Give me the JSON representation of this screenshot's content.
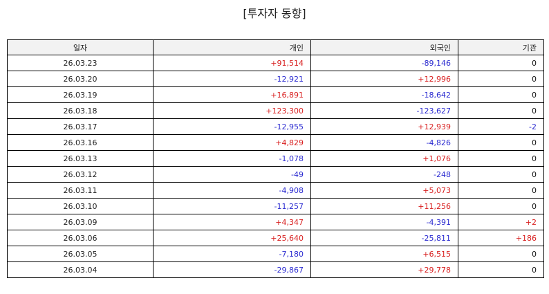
{
  "title": "[투자자 동향]",
  "colors": {
    "positive": "#d81e1e",
    "negative": "#2a2ad0",
    "neutral": "#111111",
    "header_bg": "#f2f2f2"
  },
  "table": {
    "headers": [
      "일자",
      "개인",
      "외국인",
      "기관"
    ],
    "rows": [
      [
        "26.03.23",
        "+91,514",
        "-89,146",
        "0"
      ],
      [
        "26.03.20",
        "-12,921",
        "+12,996",
        "0"
      ],
      [
        "26.03.19",
        "+16,891",
        "-18,642",
        "0"
      ],
      [
        "26.03.18",
        "+123,300",
        "-123,627",
        "0"
      ],
      [
        "26.03.17",
        "-12,955",
        "+12,939",
        "-2"
      ],
      [
        "26.03.16",
        "+4,829",
        "-4,826",
        "0"
      ],
      [
        "26.03.13",
        "-1,078",
        "+1,076",
        "0"
      ],
      [
        "26.03.12",
        "-49",
        "-248",
        "0"
      ],
      [
        "26.03.11",
        "-4,908",
        "+5,073",
        "0"
      ],
      [
        "26.03.10",
        "-11,257",
        "+11,256",
        "0"
      ],
      [
        "26.03.09",
        "+4,347",
        "-4,391",
        "+2"
      ],
      [
        "26.03.06",
        "+25,640",
        "-25,811",
        "+186"
      ],
      [
        "26.03.05",
        "-7,180",
        "+6,515",
        "0"
      ],
      [
        "26.03.04",
        "-29,867",
        "+29,778",
        "0"
      ]
    ]
  }
}
